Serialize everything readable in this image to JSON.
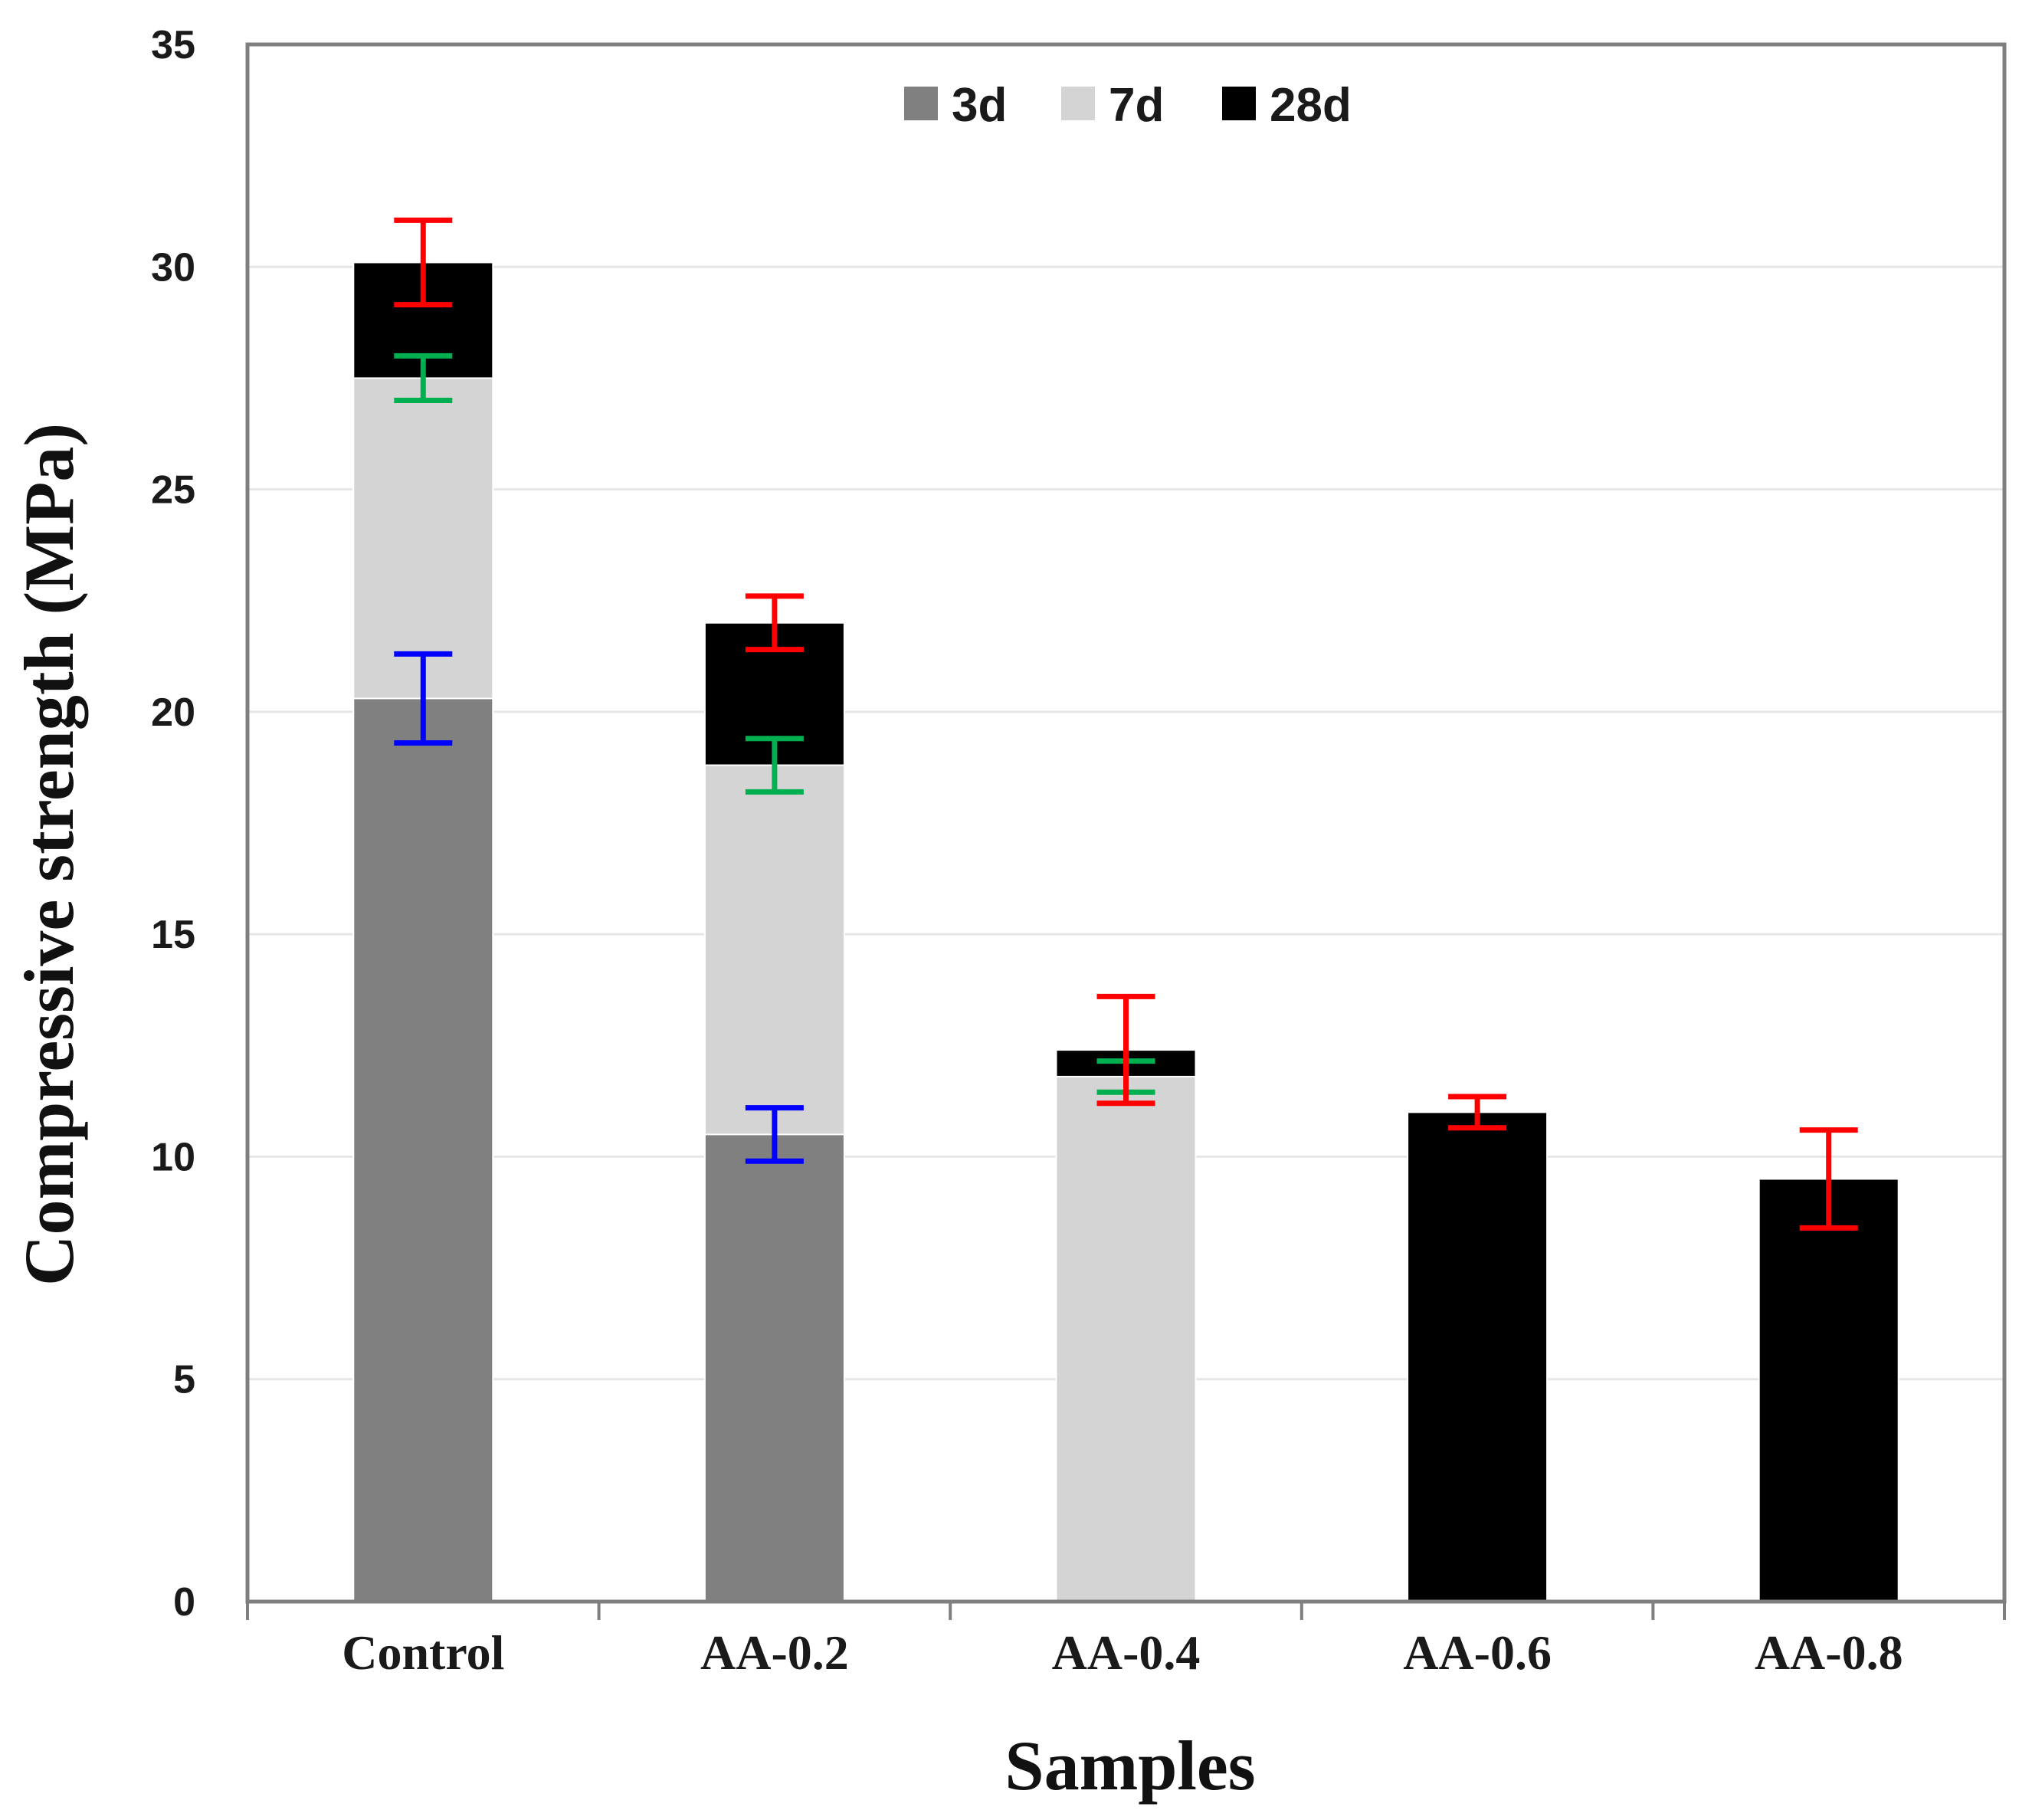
{
  "chart_data": {
    "type": "bar",
    "stacked_overlay": true,
    "title": "",
    "xlabel": "Samples",
    "ylabel": "Compressive strength (MPa)",
    "ylim": [
      0,
      35
    ],
    "yticks": [
      0,
      5,
      10,
      15,
      20,
      25,
      30,
      35
    ],
    "grid": true,
    "legend_position": "top-center",
    "categories": [
      "Control",
      "AA-0.2",
      "AA-0.4",
      "AA-0.6",
      "AA-0.8"
    ],
    "series": [
      {
        "name": "3d",
        "color": "#808080",
        "error_color": "#0000ff",
        "values": [
          20.3,
          10.5,
          null,
          null,
          null
        ],
        "errors": [
          1.0,
          0.6,
          null,
          null,
          null
        ]
      },
      {
        "name": "7d",
        "color": "#d4d4d4",
        "error_color": "#00b050",
        "values": [
          27.5,
          18.8,
          11.8,
          null,
          null
        ],
        "errors": [
          0.5,
          0.6,
          0.35,
          null,
          null
        ]
      },
      {
        "name": "28d",
        "color": "#000000",
        "error_color": "#ff0000",
        "values": [
          30.1,
          22.0,
          12.4,
          11.0,
          9.5
        ],
        "errors": [
          0.95,
          0.6,
          1.2,
          0.35,
          1.1
        ]
      }
    ]
  }
}
